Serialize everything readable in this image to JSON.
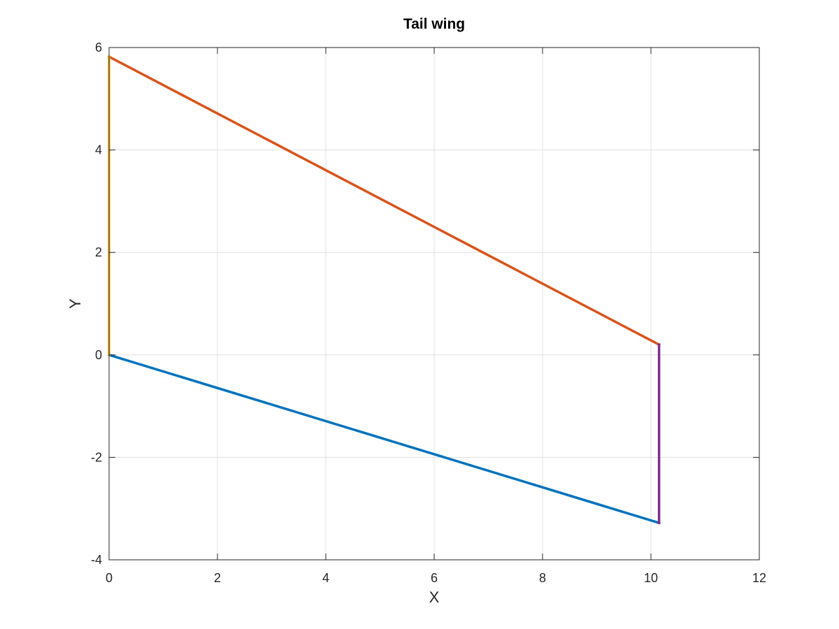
{
  "chart_data": {
    "type": "line",
    "title": "Tail wing",
    "xlabel": "X",
    "ylabel": "Y",
    "xlim": [
      0,
      12
    ],
    "ylim": [
      -4,
      6
    ],
    "xticks": [
      0,
      2,
      4,
      6,
      8,
      10,
      12
    ],
    "yticks": [
      -4,
      -2,
      0,
      2,
      4,
      6
    ],
    "grid": true,
    "box": true,
    "series": [
      {
        "color": "#0072BD",
        "x": [
          0,
          10.15
        ],
        "y": [
          0,
          -3.28
        ]
      },
      {
        "color": "#D95319",
        "x": [
          0,
          10.15
        ],
        "y": [
          5.82,
          0.2
        ]
      },
      {
        "color": "#EDB120",
        "x": [
          0,
          0
        ],
        "y": [
          0,
          5.82
        ]
      },
      {
        "color": "#7E2F8E",
        "x": [
          10.15,
          10.15
        ],
        "y": [
          -3.28,
          0.2
        ]
      }
    ]
  }
}
